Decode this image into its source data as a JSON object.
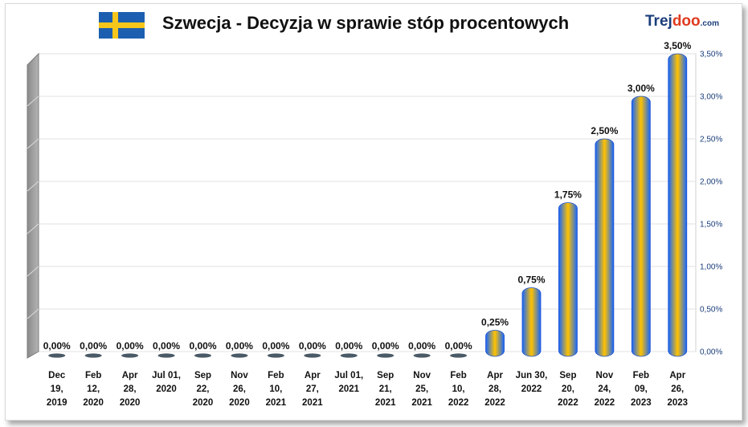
{
  "header": {
    "title": "Szwecja - Decyzja w sprawie stóp procentowych",
    "logo_main": "Trej",
    "logo_accent": "doo",
    "logo_domain": ".com",
    "flag_icon": "sweden-flag-icon"
  },
  "colors": {
    "bar_edge": "#1565ff",
    "bar_mid": "#ffc200",
    "flag_blue": "#1c5fb0",
    "flag_yellow": "#f7c61a",
    "axis_text": "#1a3d7a"
  },
  "chart_data": {
    "type": "bar",
    "title": "Szwecja - Decyzja w sprawie stóp procentowych",
    "xlabel": "",
    "ylabel": "",
    "ylim": [
      0,
      3.5
    ],
    "yticks": [
      "0,00%",
      "0,50%",
      "1,00%",
      "1,50%",
      "2,00%",
      "2,50%",
      "3,00%",
      "3,50%"
    ],
    "grid": true,
    "categories": [
      [
        "Dec",
        "19,",
        "2019"
      ],
      [
        "Feb",
        "12,",
        "2020"
      ],
      [
        "Apr",
        "28,",
        "2020"
      ],
      [
        "Jul 01,",
        "2020"
      ],
      [
        "Sep",
        "22,",
        "2020"
      ],
      [
        "Nov",
        "26,",
        "2020"
      ],
      [
        "Feb",
        "10,",
        "2021"
      ],
      [
        "Apr",
        "27,",
        "2021"
      ],
      [
        "Jul 01,",
        "2021"
      ],
      [
        "Sep",
        "21,",
        "2021"
      ],
      [
        "Nov",
        "25,",
        "2021"
      ],
      [
        "Feb",
        "10,",
        "2022"
      ],
      [
        "Apr",
        "28,",
        "2022"
      ],
      [
        "Jun 30,",
        "2022"
      ],
      [
        "Sep",
        "20,",
        "2022"
      ],
      [
        "Nov",
        "24,",
        "2022"
      ],
      [
        "Feb",
        "09,",
        "2023"
      ],
      [
        "Apr",
        "26,",
        "2023"
      ]
    ],
    "values": [
      0,
      0,
      0,
      0,
      0,
      0,
      0,
      0,
      0,
      0,
      0,
      0,
      0.25,
      0.75,
      1.75,
      2.5,
      3.0,
      3.5
    ],
    "labels": [
      "0,00%",
      "0,00%",
      "0,00%",
      "0,00%",
      "0,00%",
      "0,00%",
      "0,00%",
      "0,00%",
      "0,00%",
      "0,00%",
      "0,00%",
      "0,00%",
      "0,25%",
      "0,75%",
      "1,75%",
      "2,50%",
      "3,00%",
      "3,50%"
    ]
  }
}
